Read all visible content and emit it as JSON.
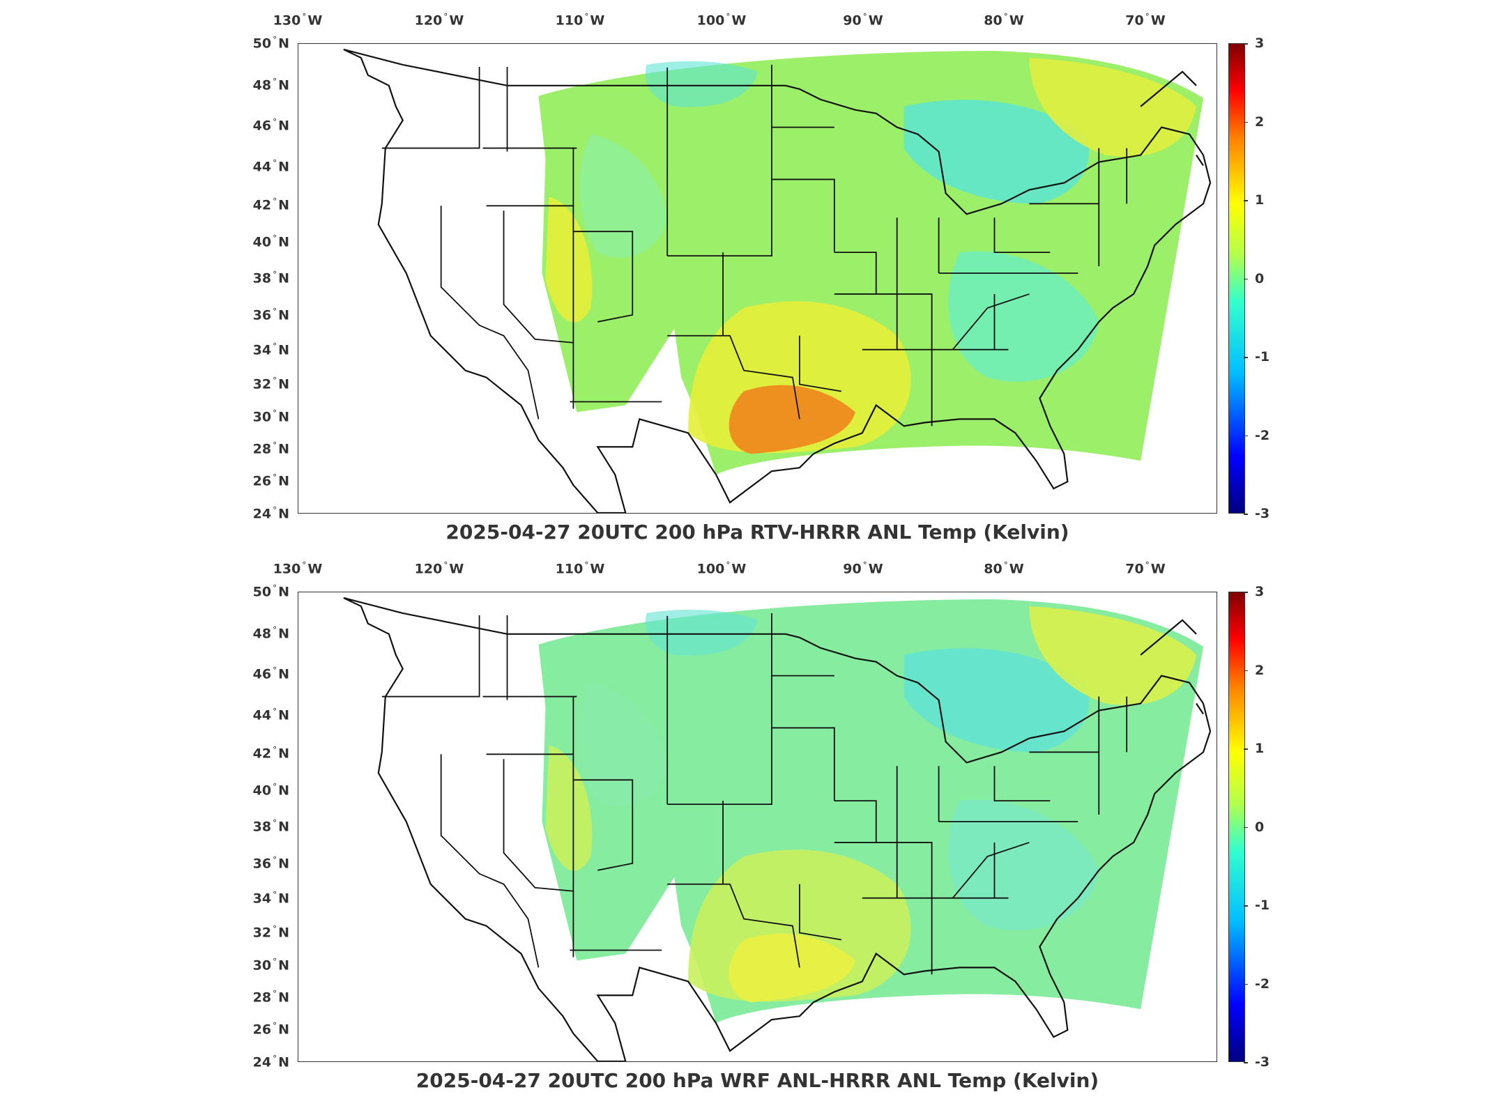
{
  "panels": [
    {
      "title": "2025-04-27 20UTC 200 hPa RTV-HRRR ANL Temp (Kelvin)",
      "field": "rtv",
      "colors": {
        "west": "#e6ee3a",
        "central": "#9cef68",
        "northeast": "#e0ee40",
        "southeast": "#6feebd",
        "gulf": "#ee8a1f",
        "rockies": "#8ef09a",
        "lakes": "#5de5d5"
      }
    },
    {
      "title": "2025-04-27 20UTC 200 hPa WRF ANL-HRRR ANL Temp (Kelvin)",
      "field": "wrf",
      "colors": {
        "west": "#c9f05e",
        "central": "#86eda0",
        "northeast": "#d8f04a",
        "southeast": "#7ae9c2",
        "gulf": "#e9f043",
        "rockies": "#8aeaa9",
        "lakes": "#62e2d3"
      }
    }
  ],
  "lon_labels": [
    {
      "deg": "130",
      "hemi": "W"
    },
    {
      "deg": "120",
      "hemi": "W"
    },
    {
      "deg": "110",
      "hemi": "W"
    },
    {
      "deg": "100",
      "hemi": "W"
    },
    {
      "deg": "90",
      "hemi": "W"
    },
    {
      "deg": "80",
      "hemi": "W"
    },
    {
      "deg": "70",
      "hemi": "W"
    }
  ],
  "lat_labels": [
    {
      "deg": "50",
      "hemi": "N"
    },
    {
      "deg": "48",
      "hemi": "N"
    },
    {
      "deg": "46",
      "hemi": "N"
    },
    {
      "deg": "44",
      "hemi": "N"
    },
    {
      "deg": "42",
      "hemi": "N"
    },
    {
      "deg": "40",
      "hemi": "N"
    },
    {
      "deg": "38",
      "hemi": "N"
    },
    {
      "deg": "36",
      "hemi": "N"
    },
    {
      "deg": "34",
      "hemi": "N"
    },
    {
      "deg": "32",
      "hemi": "N"
    },
    {
      "deg": "30",
      "hemi": "N"
    },
    {
      "deg": "28",
      "hemi": "N"
    },
    {
      "deg": "26",
      "hemi": "N"
    },
    {
      "deg": "24",
      "hemi": "N"
    }
  ],
  "colorbar": {
    "min": -3,
    "max": 3,
    "ticks": [
      "3",
      "2",
      "1",
      "0",
      "-1",
      "-2",
      "-3"
    ],
    "colormap": "jet"
  }
}
